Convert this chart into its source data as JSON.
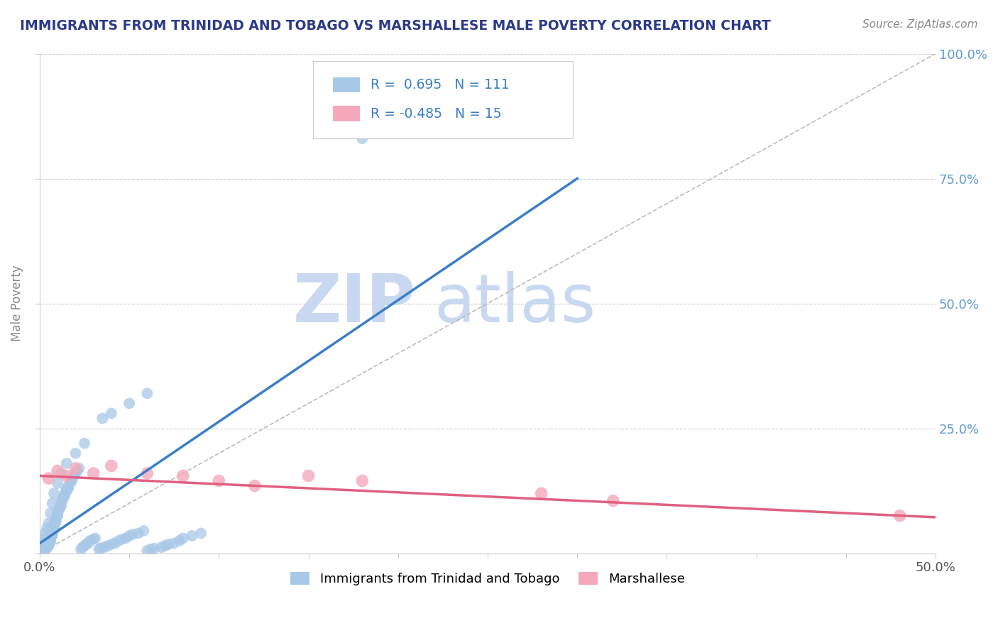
{
  "title": "IMMIGRANTS FROM TRINIDAD AND TOBAGO VS MARSHALLESE MALE POVERTY CORRELATION CHART",
  "source_text": "Source: ZipAtlas.com",
  "ylabel": "Male Poverty",
  "xlim": [
    0.0,
    0.5
  ],
  "ylim": [
    0.0,
    1.0
  ],
  "blue_color": "#A8C8E8",
  "pink_color": "#F4A8BA",
  "blue_line_color": "#3A7EC8",
  "pink_line_color": "#E06080",
  "legend_blue_r": "0.695",
  "legend_blue_n": "111",
  "legend_pink_r": "-0.485",
  "legend_pink_n": "15",
  "watermark_zip": "ZIP",
  "watermark_atlas": "atlas",
  "watermark_color_zip": "#C8D8F0",
  "watermark_color_atlas": "#C8D8F0",
  "background_color": "#FFFFFF",
  "title_color": "#2B3A8A",
  "tick_label_color_right": "#5B9BD5",
  "blue_x": [
    0.002,
    0.003,
    0.004,
    0.004,
    0.005,
    0.005,
    0.005,
    0.006,
    0.006,
    0.006,
    0.007,
    0.007,
    0.007,
    0.007,
    0.008,
    0.008,
    0.008,
    0.008,
    0.009,
    0.009,
    0.009,
    0.01,
    0.01,
    0.01,
    0.01,
    0.011,
    0.011,
    0.012,
    0.012,
    0.012,
    0.013,
    0.013,
    0.014,
    0.014,
    0.015,
    0.015,
    0.016,
    0.016,
    0.017,
    0.018,
    0.018,
    0.019,
    0.02,
    0.021,
    0.022,
    0.023,
    0.024,
    0.025,
    0.026,
    0.027,
    0.028,
    0.03,
    0.031,
    0.033,
    0.034,
    0.036,
    0.038,
    0.04,
    0.042,
    0.044,
    0.046,
    0.048,
    0.05,
    0.052,
    0.055,
    0.058,
    0.06,
    0.062,
    0.064,
    0.068,
    0.07,
    0.072,
    0.075,
    0.078,
    0.08,
    0.085,
    0.09,
    0.05,
    0.06,
    0.04,
    0.035,
    0.025,
    0.02,
    0.015,
    0.012,
    0.01,
    0.008,
    0.007,
    0.006,
    0.005,
    0.004,
    0.003,
    0.003,
    0.002,
    0.002,
    0.001,
    0.001,
    0.001,
    0.001,
    0.001,
    0.001,
    0.001,
    0.001,
    0.001,
    0.001,
    0.001,
    0.001,
    0.001,
    0.001,
    0.001,
    0.18
  ],
  "blue_y": [
    0.005,
    0.008,
    0.01,
    0.012,
    0.015,
    0.018,
    0.02,
    0.022,
    0.025,
    0.03,
    0.035,
    0.038,
    0.04,
    0.045,
    0.048,
    0.05,
    0.055,
    0.06,
    0.062,
    0.065,
    0.07,
    0.075,
    0.078,
    0.08,
    0.085,
    0.088,
    0.09,
    0.095,
    0.1,
    0.105,
    0.108,
    0.112,
    0.115,
    0.12,
    0.125,
    0.128,
    0.13,
    0.135,
    0.14,
    0.145,
    0.15,
    0.155,
    0.16,
    0.165,
    0.17,
    0.008,
    0.012,
    0.015,
    0.018,
    0.02,
    0.025,
    0.028,
    0.03,
    0.008,
    0.01,
    0.012,
    0.015,
    0.018,
    0.02,
    0.025,
    0.028,
    0.03,
    0.035,
    0.038,
    0.04,
    0.045,
    0.005,
    0.008,
    0.01,
    0.012,
    0.015,
    0.018,
    0.02,
    0.025,
    0.03,
    0.035,
    0.04,
    0.3,
    0.32,
    0.28,
    0.27,
    0.22,
    0.2,
    0.18,
    0.16,
    0.14,
    0.12,
    0.1,
    0.08,
    0.06,
    0.05,
    0.04,
    0.03,
    0.02,
    0.01,
    0.005,
    0.008,
    0.01,
    0.012,
    0.015,
    0.005,
    0.008,
    0.003,
    0.005,
    0.007,
    0.004,
    0.006,
    0.002,
    0.003,
    0.001,
    0.83
  ],
  "pink_x": [
    0.005,
    0.01,
    0.015,
    0.02,
    0.03,
    0.04,
    0.06,
    0.08,
    0.1,
    0.12,
    0.15,
    0.18,
    0.28,
    0.32,
    0.48
  ],
  "pink_y": [
    0.15,
    0.165,
    0.155,
    0.17,
    0.16,
    0.175,
    0.16,
    0.155,
    0.145,
    0.135,
    0.155,
    0.145,
    0.12,
    0.105,
    0.075
  ],
  "blue_trend_x": [
    0.0,
    0.3
  ],
  "blue_trend_y": [
    0.02,
    0.75
  ],
  "pink_trend_x": [
    0.0,
    0.5
  ],
  "pink_trend_y": [
    0.155,
    0.072
  ]
}
